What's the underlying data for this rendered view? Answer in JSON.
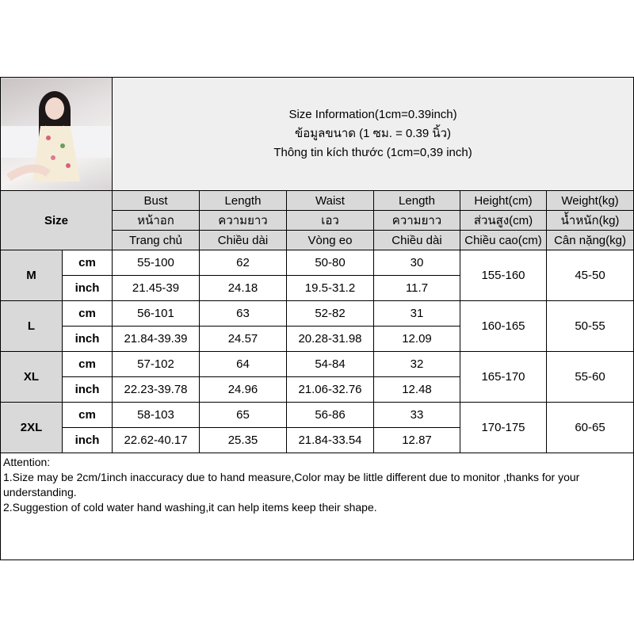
{
  "title_lines": [
    "Size Information(1cm=0.39inch)",
    "ข้อมูลขนาด (1 ซม. = 0.39 นิ้ว)",
    "Thông tin kích thước (1cm=0,39 inch)"
  ],
  "size_label": "Size",
  "headers": [
    [
      "Bust",
      "Length",
      "Waist",
      "Length",
      "Height(cm)",
      "Weight(kg)"
    ],
    [
      "หน้าอก",
      "ความยาว",
      "เอว",
      "ความยาว",
      "ส่วนสูง(cm)",
      "น้ำหนัก(kg)"
    ],
    [
      "Trang chủ",
      "Chiều dài",
      "Vòng eo",
      "Chiều dài",
      "Chiều cao(cm)",
      "Cân nặng(kg)"
    ]
  ],
  "sizes": [
    {
      "name": "M",
      "cm": [
        "55-100",
        "62",
        "50-80",
        "30"
      ],
      "inch": [
        "21.45-39",
        "24.18",
        "19.5-31.2",
        "11.7"
      ],
      "height": "155-160",
      "weight": "45-50"
    },
    {
      "name": "L",
      "cm": [
        "56-101",
        "63",
        "52-82",
        "31"
      ],
      "inch": [
        "21.84-39.39",
        "24.57",
        "20.28-31.98",
        "12.09"
      ],
      "height": "160-165",
      "weight": "50-55"
    },
    {
      "name": "XL",
      "cm": [
        "57-102",
        "64",
        "54-84",
        "32"
      ],
      "inch": [
        "22.23-39.78",
        "24.96",
        "21.06-32.76",
        "12.48"
      ],
      "height": "165-170",
      "weight": "55-60"
    },
    {
      "name": "2XL",
      "cm": [
        "58-103",
        "65",
        "56-86",
        "33"
      ],
      "inch": [
        "22.62-40.17",
        "25.35",
        "21.84-33.54",
        "12.87"
      ],
      "height": "170-175",
      "weight": "60-65"
    }
  ],
  "units": {
    "cm": "cm",
    "inch": "inch"
  },
  "attention": [
    "Attention:",
    "1.Size may be 2cm/1inch inaccuracy due to hand measure,Color may be little different due to monitor ,thanks for your understanding.",
    "2.Suggestion of cold water hand washing,it can help items keep their shape."
  ]
}
